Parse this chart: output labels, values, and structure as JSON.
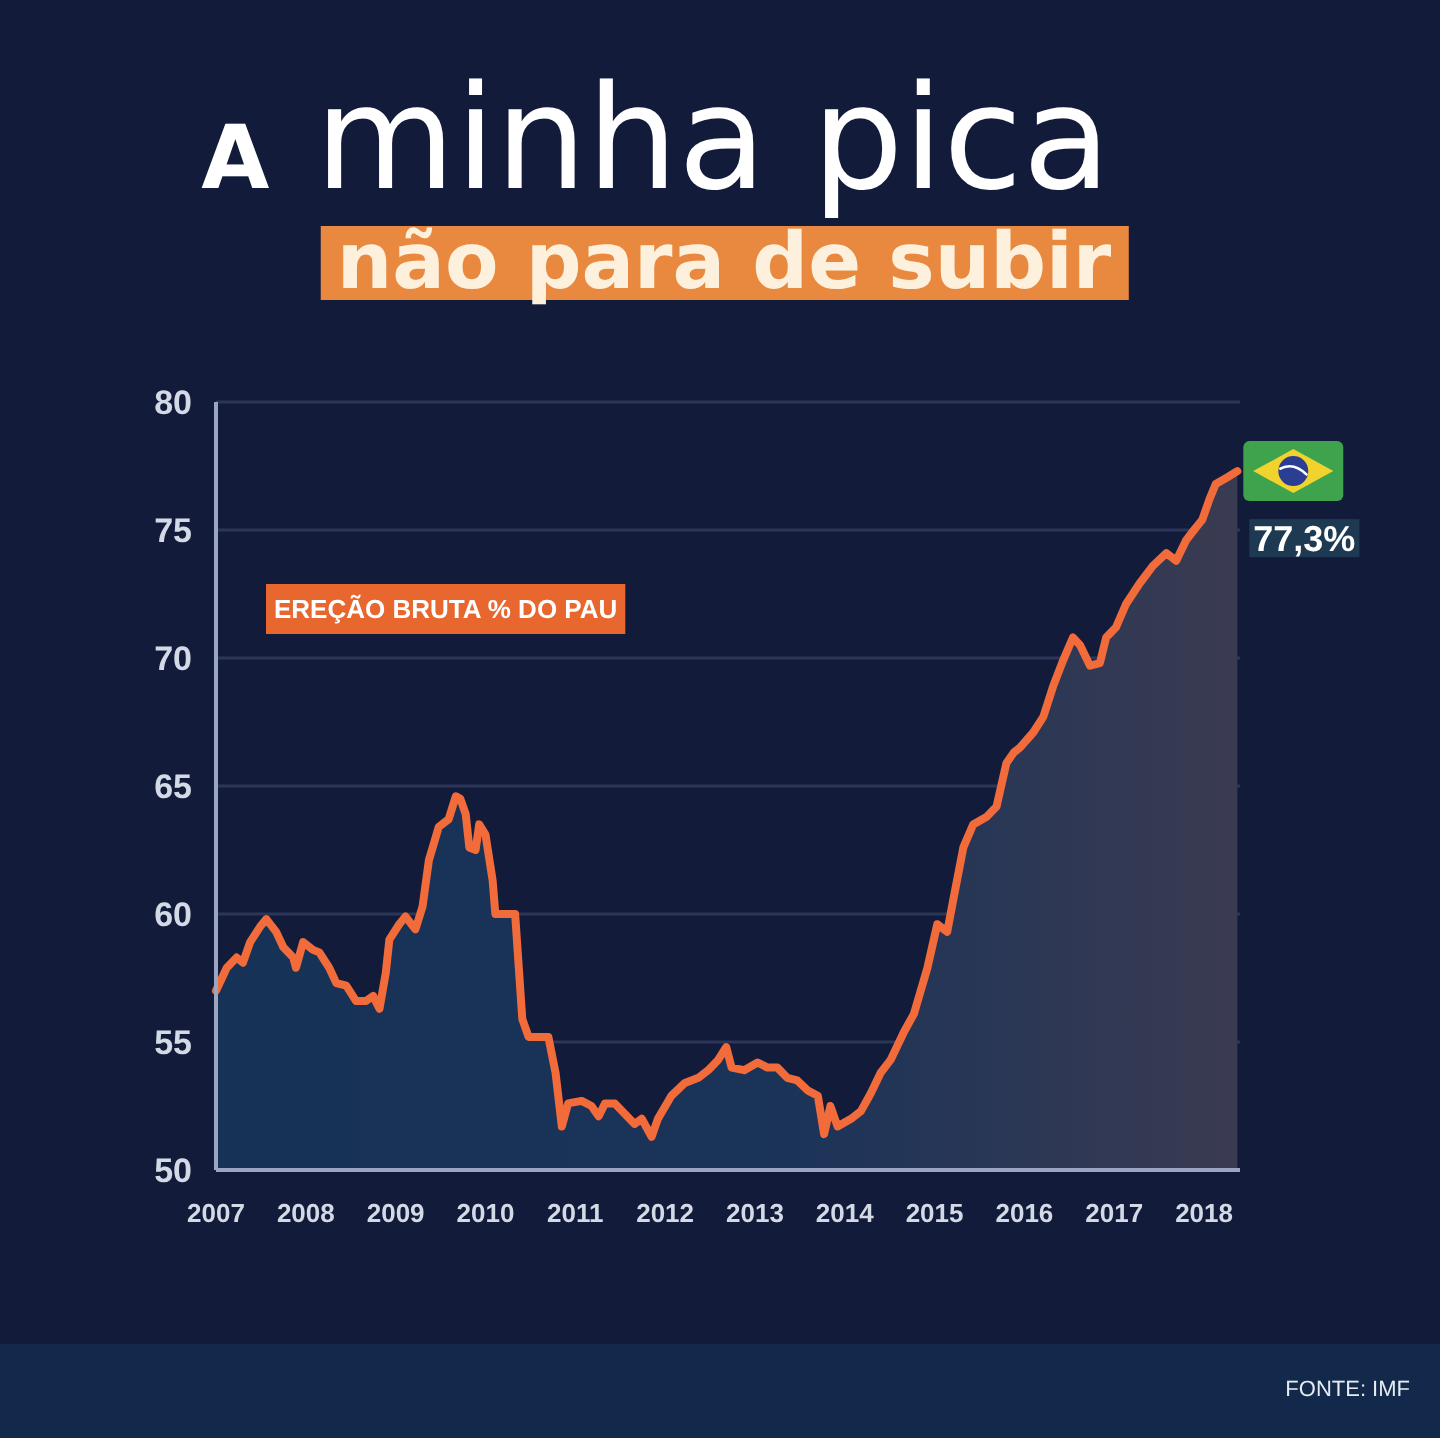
{
  "chart_data": {
    "type": "area",
    "title": "A minha pica",
    "subtitle": "não para de subir",
    "x": [
      2007.0,
      2007.12,
      2007.23,
      2007.3,
      2007.38,
      2007.49,
      2007.56,
      2007.67,
      2007.75,
      2007.86,
      2007.89,
      2007.97,
      2008.08,
      2008.15,
      2008.26,
      2008.34,
      2008.45,
      2008.56,
      2008.67,
      2008.75,
      2008.82,
      2008.89,
      2008.93,
      2009.04,
      2009.11,
      2009.22,
      2009.3,
      2009.37,
      2009.48,
      2009.59,
      2009.67,
      2009.72,
      2009.78,
      2009.82,
      2009.89,
      2009.93,
      2010.0,
      2010.08,
      2010.11,
      2010.33,
      2010.41,
      2010.48,
      2010.7,
      2010.78,
      2010.85,
      2010.92,
      2011.07,
      2011.18,
      2011.26,
      2011.33,
      2011.44,
      2011.55,
      2011.66,
      2011.74,
      2011.85,
      2011.92,
      2012.07,
      2012.22,
      2012.37,
      2012.48,
      2012.59,
      2012.68,
      2012.74,
      2012.88,
      2013.03,
      2013.14,
      2013.25,
      2013.36,
      2013.47,
      2013.59,
      2013.7,
      2013.77,
      2013.84,
      2013.92,
      2014.07,
      2014.18,
      2014.29,
      2014.4,
      2014.51,
      2014.66,
      2014.77,
      2014.92,
      2015.03,
      2015.14,
      2015.21,
      2015.32,
      2015.43,
      2015.58,
      2015.69,
      2015.8,
      2015.88,
      2015.95,
      2016.1,
      2016.21,
      2016.32,
      2016.43,
      2016.54,
      2016.62,
      2016.73,
      2016.84,
      2016.91,
      2017.02,
      2017.13,
      2017.28,
      2017.43,
      2017.58,
      2017.69,
      2017.8,
      2017.91,
      2017.98,
      2018.06,
      2018.13,
      2018.28,
      2018.37
    ],
    "series": [
      {
        "color": "#f26b3a",
        "values": [
          57.0,
          57.9,
          58.3,
          58.1,
          58.9,
          59.5,
          59.8,
          59.3,
          58.7,
          58.3,
          57.9,
          58.9,
          58.6,
          58.5,
          57.9,
          57.3,
          57.2,
          56.6,
          56.6,
          56.8,
          56.3,
          57.7,
          59.0,
          59.6,
          59.9,
          59.4,
          60.3,
          62.1,
          63.4,
          63.7,
          64.6,
          64.5,
          63.9,
          62.6,
          62.5,
          63.5,
          63.1,
          61.3,
          60.0,
          60.0,
          55.9,
          55.2,
          55.2,
          53.8,
          51.7,
          52.6,
          52.7,
          52.5,
          52.1,
          52.6,
          52.6,
          52.2,
          51.8,
          52.0,
          51.3,
          52.0,
          52.9,
          53.4,
          53.6,
          53.9,
          54.3,
          54.8,
          54.0,
          53.9,
          54.2,
          54.0,
          54.0,
          53.6,
          53.5,
          53.1,
          52.9,
          51.4,
          52.5,
          51.7,
          52.0,
          52.3,
          53.0,
          53.8,
          54.3,
          55.4,
          56.1,
          57.9,
          59.6,
          59.3,
          60.6,
          62.6,
          63.5,
          63.8,
          64.2,
          65.9,
          66.3,
          66.5,
          67.1,
          67.7,
          68.9,
          69.9,
          70.8,
          70.5,
          69.7,
          69.8,
          70.8,
          71.2,
          72.1,
          72.9,
          73.6,
          74.1,
          73.8,
          74.6,
          75.1,
          75.4,
          76.2,
          76.8,
          77.1,
          77.3
        ]
      }
    ],
    "xlim": [
      2007,
      2018.4
    ],
    "xticks": [
      2007,
      2008,
      2009,
      2010,
      2011,
      2012,
      2013,
      2014,
      2015,
      2016,
      2017,
      2018
    ],
    "ylim": [
      50,
      80
    ],
    "yticks": [
      50,
      55,
      60,
      65,
      70,
      75,
      80
    ],
    "grid": "y",
    "annotations": [
      "EREÇÃO BRUTA % DO PAU",
      {
        "text": "77,3%",
        "x": 2018.37,
        "y": 77.3
      },
      "FONTE: IMF"
    ]
  }
}
